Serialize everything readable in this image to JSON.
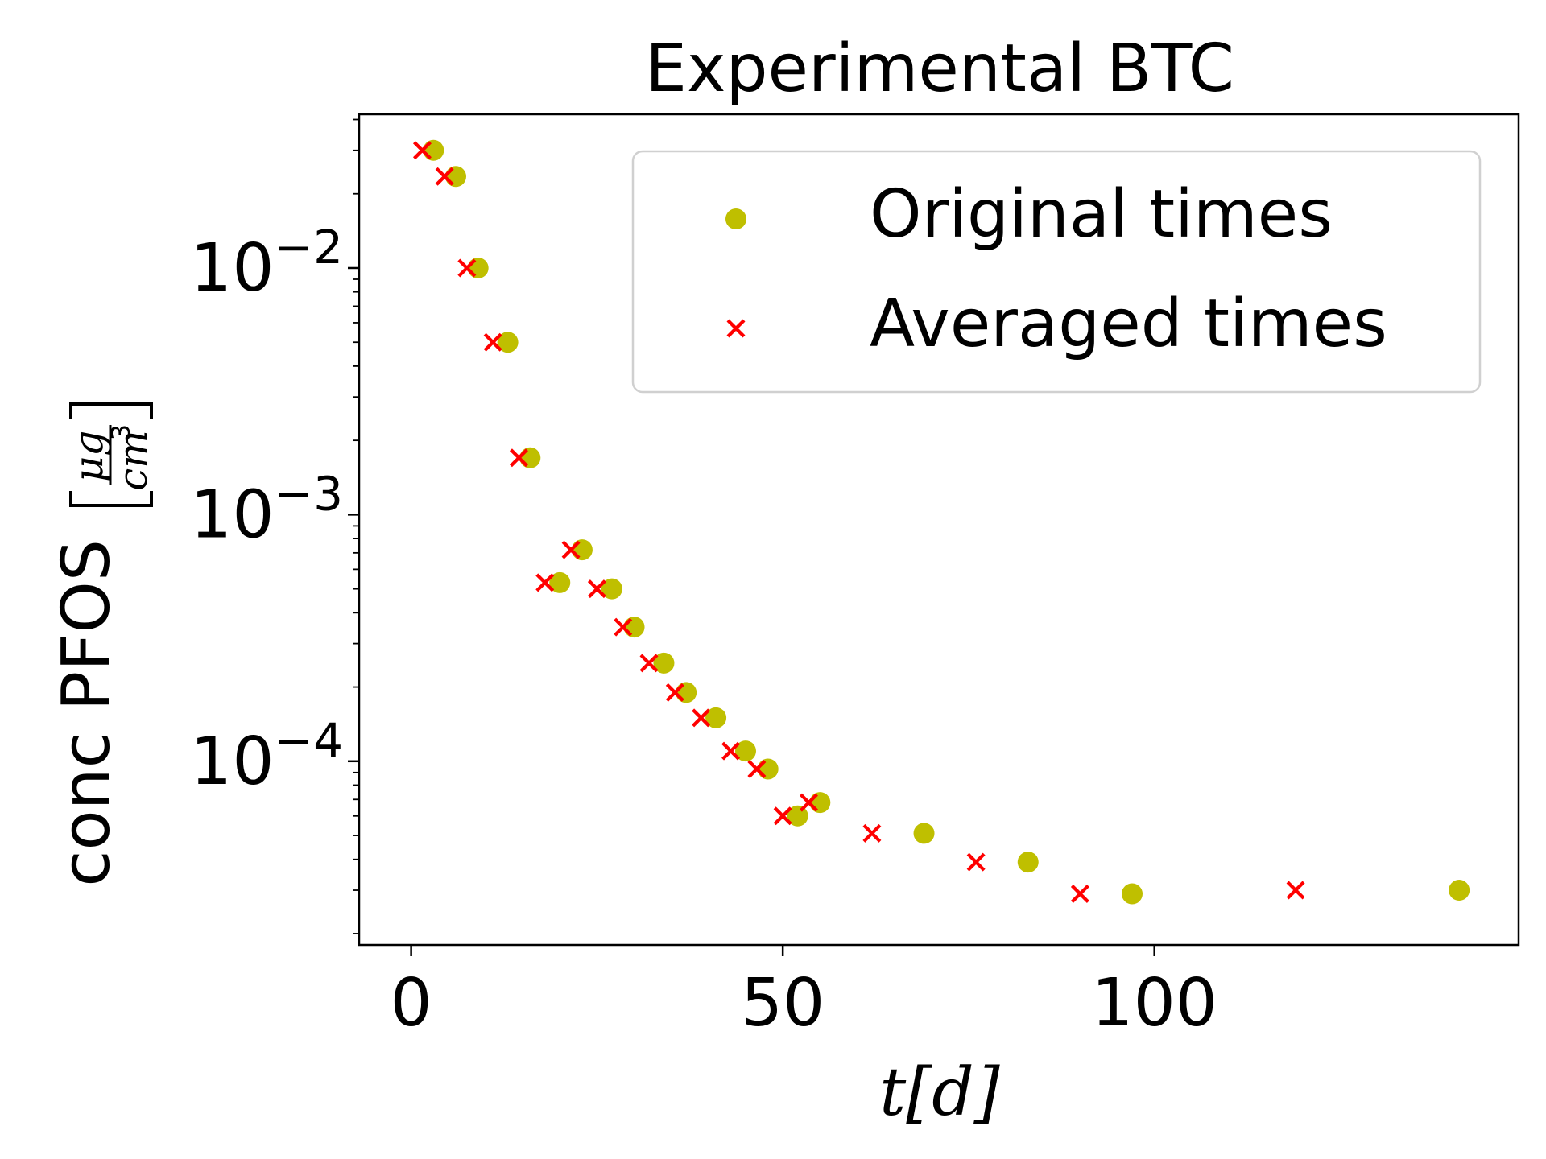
{
  "chart_data": {
    "type": "scatter",
    "title": "Experimental BTC",
    "xlabel": "t[d]",
    "ylabel": {
      "prefix": "conc PFOS",
      "numerator": "μg",
      "denominator": "cm",
      "denominator_exponent": "3"
    },
    "xlim": [
      -7,
      149
    ],
    "ylim": [
      1.8e-05,
      0.042
    ],
    "yscale": "log",
    "grid": false,
    "legend_placement": "top-right",
    "x_ticks": [
      {
        "value": 0,
        "label": "0"
      },
      {
        "value": 50,
        "label": "50"
      },
      {
        "value": 100,
        "label": "100"
      }
    ],
    "y_ticks": [
      {
        "value": 0.01,
        "base": "10",
        "exponent": "−2"
      },
      {
        "value": 0.001,
        "base": "10",
        "exponent": "−3"
      },
      {
        "value": 0.0001,
        "base": "10",
        "exponent": "−4"
      }
    ],
    "series": [
      {
        "name": "Original times",
        "marker": "circle",
        "color": "#bfbf00",
        "points": [
          [
            3,
            0.03
          ],
          [
            6,
            0.0235
          ],
          [
            9,
            0.01
          ],
          [
            13,
            0.005
          ],
          [
            16,
            0.0017
          ],
          [
            20,
            0.00053
          ],
          [
            23,
            0.00072
          ],
          [
            27,
            0.0005
          ],
          [
            30,
            0.00035
          ],
          [
            34,
            0.00025
          ],
          [
            37,
            0.00019
          ],
          [
            41,
            0.00015
          ],
          [
            45,
            0.00011
          ],
          [
            48,
            9.3e-05
          ],
          [
            52,
            6e-05
          ],
          [
            55,
            6.8e-05
          ],
          [
            69,
            5.1e-05
          ],
          [
            83,
            3.9e-05
          ],
          [
            97,
            2.9e-05
          ],
          [
            141,
            3e-05
          ]
        ]
      },
      {
        "name": "Averaged times",
        "marker": "x",
        "color": "#ff0000",
        "points": [
          [
            1.5,
            0.03
          ],
          [
            4.5,
            0.0235
          ],
          [
            7.5,
            0.01
          ],
          [
            11,
            0.005
          ],
          [
            14.5,
            0.0017
          ],
          [
            18,
            0.00053
          ],
          [
            21.5,
            0.00072
          ],
          [
            25,
            0.0005
          ],
          [
            28.5,
            0.00035
          ],
          [
            32,
            0.00025
          ],
          [
            35.5,
            0.00019
          ],
          [
            39,
            0.00015
          ],
          [
            43,
            0.00011
          ],
          [
            46.5,
            9.3e-05
          ],
          [
            50,
            6e-05
          ],
          [
            53.5,
            6.8e-05
          ],
          [
            62,
            5.1e-05
          ],
          [
            76,
            3.9e-05
          ],
          [
            90,
            2.9e-05
          ],
          [
            119,
            3e-05
          ]
        ]
      }
    ]
  }
}
